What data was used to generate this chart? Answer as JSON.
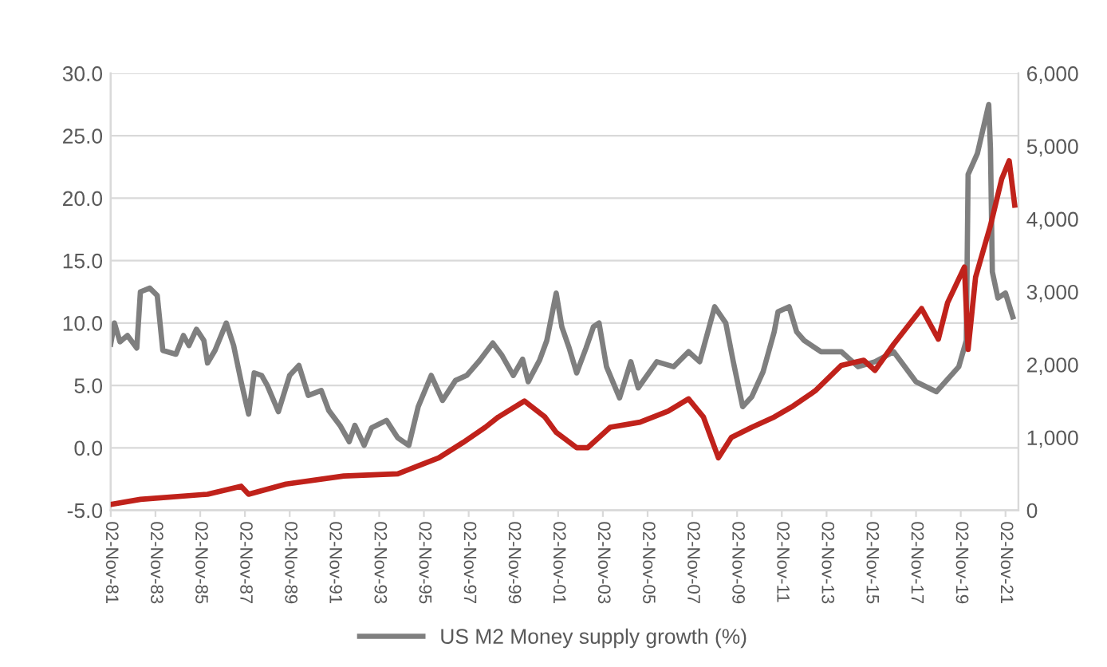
{
  "chart_data": {
    "type": "line",
    "legend": "bottom",
    "grid": "y",
    "line_style": "solid",
    "marker": "none",
    "xlim": [
      "1981-11-01",
      "2022-06-01"
    ],
    "xticks": [
      {
        "value": "1981-11-02",
        "label": "02-Nov-81"
      },
      {
        "value": "1983-11-02",
        "label": "02-Nov-83"
      },
      {
        "value": "1985-11-02",
        "label": "02-Nov-85"
      },
      {
        "value": "1987-11-02",
        "label": "02-Nov-87"
      },
      {
        "value": "1989-11-02",
        "label": "02-Nov-89"
      },
      {
        "value": "1991-11-02",
        "label": "02-Nov-91"
      },
      {
        "value": "1993-11-02",
        "label": "02-Nov-93"
      },
      {
        "value": "1995-11-02",
        "label": "02-Nov-95"
      },
      {
        "value": "1997-11-02",
        "label": "02-Nov-97"
      },
      {
        "value": "1999-11-02",
        "label": "02-Nov-99"
      },
      {
        "value": "2001-11-02",
        "label": "02-Nov-01"
      },
      {
        "value": "2003-11-02",
        "label": "02-Nov-03"
      },
      {
        "value": "2005-11-02",
        "label": "02-Nov-05"
      },
      {
        "value": "2007-11-02",
        "label": "02-Nov-07"
      },
      {
        "value": "2009-11-02",
        "label": "02-Nov-09"
      },
      {
        "value": "2011-11-02",
        "label": "02-Nov-11"
      },
      {
        "value": "2013-11-02",
        "label": "02-Nov-13"
      },
      {
        "value": "2015-11-02",
        "label": "02-Nov-15"
      },
      {
        "value": "2017-11-02",
        "label": "02-Nov-17"
      },
      {
        "value": "2019-11-02",
        "label": "02-Nov-19"
      },
      {
        "value": "2021-11-02",
        "label": "02-Nov-21"
      }
    ],
    "ylim": [
      -5,
      30
    ],
    "yticks": [
      {
        "value": -5,
        "label": "-5.0"
      },
      {
        "value": 0,
        "label": "0.0"
      },
      {
        "value": 5,
        "label": "5.0"
      },
      {
        "value": 10,
        "label": "10.0"
      },
      {
        "value": 15,
        "label": "15.0"
      },
      {
        "value": 20,
        "label": "20.0"
      },
      {
        "value": 25,
        "label": "25.0"
      },
      {
        "value": 30,
        "label": "30.0"
      }
    ],
    "y2lim": [
      0,
      6000
    ],
    "y2ticks": [
      0,
      {
        "value": 1000,
        "label": "1,000"
      },
      {
        "value": 2000,
        "label": "2,000"
      },
      {
        "value": 3000,
        "label": "3,000"
      },
      {
        "value": 4000,
        "label": "4,000"
      },
      {
        "value": 5000,
        "label": "5,000"
      },
      {
        "value": 6000,
        "label": "6,000"
      }
    ],
    "series": [
      {
        "name": "US M2 Money supply growth (%)",
        "color": "#7f7f7f",
        "x": [
          "1981-11",
          "1982-01",
          "1982-04",
          "1982-08",
          "1983-01",
          "1983-03",
          "1983-08",
          "1983-12",
          "1984-03",
          "1984-10",
          "1985-02",
          "1985-05",
          "1985-09",
          "1986-01",
          "1986-03",
          "1986-07",
          "1987-01",
          "1987-05",
          "1987-09",
          "1988-01",
          "1988-04",
          "1988-08",
          "1988-11",
          "1989-05",
          "1989-11",
          "1990-04",
          "1990-09",
          "1991-04",
          "1991-08",
          "1992-02",
          "1992-07",
          "1992-10",
          "1993-03",
          "1993-07",
          "1994-03",
          "1994-09",
          "1995-03",
          "1995-08",
          "1996-03",
          "1996-09",
          "1997-04",
          "1997-10",
          "1998-05",
          "1998-12",
          "1999-05",
          "1999-11",
          "2000-04",
          "2000-07",
          "2001-01",
          "2001-05",
          "2001-10",
          "2002-01",
          "2002-05",
          "2002-09",
          "2003-02",
          "2003-06",
          "2003-09",
          "2004-01",
          "2004-08",
          "2005-02",
          "2005-06",
          "2006-04",
          "2007-01",
          "2007-09",
          "2008-03",
          "2008-11",
          "2009-05",
          "2009-09",
          "2010-02",
          "2010-07",
          "2011-01",
          "2011-07",
          "2011-09",
          "2012-03",
          "2012-07",
          "2012-11",
          "2013-08",
          "2014-07",
          "2015-04",
          "2016-01",
          "2016-11",
          "2017-11",
          "2018-10",
          "2019-10",
          "2020-02",
          "2020-03",
          "2020-08",
          "2021-02",
          "2021-03",
          "2021-04",
          "2021-07",
          "2021-11",
          "2022-03"
        ],
        "values": [
          8.3,
          10.0,
          8.5,
          9.0,
          8.0,
          12.5,
          12.8,
          12.2,
          7.8,
          7.5,
          9.0,
          8.2,
          9.5,
          8.6,
          6.8,
          7.8,
          10.0,
          8.2,
          5.3,
          2.7,
          6.0,
          5.8,
          5.0,
          2.9,
          5.8,
          6.6,
          4.2,
          4.6,
          3.0,
          1.8,
          0.5,
          1.8,
          0.2,
          1.6,
          2.2,
          0.8,
          0.2,
          3.3,
          5.8,
          3.8,
          5.4,
          5.8,
          7.0,
          8.4,
          7.4,
          5.8,
          7.1,
          5.3,
          7.0,
          8.6,
          12.4,
          9.7,
          8.0,
          6.0,
          8.0,
          9.7,
          10.0,
          6.5,
          4.0,
          6.9,
          4.8,
          6.9,
          6.5,
          7.7,
          6.9,
          11.3,
          10.0,
          6.9,
          3.3,
          4.1,
          6.1,
          9.3,
          10.9,
          11.3,
          9.3,
          8.6,
          7.7,
          7.7,
          6.5,
          6.9,
          7.7,
          5.3,
          4.5,
          6.5,
          8.6,
          21.9,
          23.6,
          27.5,
          24.0,
          14.1,
          12.0,
          12.4,
          10.5
        ]
      },
      {
        "color": "#c0221b",
        "axis": "y2",
        "x": [
          "1981-11",
          "1983-03",
          "1986-03",
          "1987-09",
          "1988-01",
          "1989-09",
          "1992-04",
          "1994-09",
          "1995-08",
          "1996-07",
          "1997-08",
          "1998-08",
          "1999-03",
          "2000-05",
          "2001-04",
          "2001-10",
          "2002-09",
          "2003-03",
          "2004-03",
          "2005-07",
          "2006-10",
          "2007-09",
          "2008-05",
          "2009-01",
          "2009-08",
          "2010-07",
          "2011-07",
          "2012-05",
          "2013-05",
          "2014-07",
          "2015-07",
          "2016-01",
          "2016-11",
          "2018-02",
          "2018-11",
          "2019-04",
          "2020-01",
          "2020-03",
          "2020-07",
          "2021-03",
          "2021-09",
          "2022-01",
          "2022-04"
        ],
        "values": [
          80,
          150,
          220,
          330,
          220,
          360,
          470,
          500,
          610,
          720,
          930,
          1140,
          1280,
          1500,
          1280,
          1070,
          860,
          860,
          1140,
          1210,
          1360,
          1530,
          1280,
          720,
          1000,
          1140,
          1280,
          1430,
          1640,
          1990,
          2060,
          1920,
          2280,
          2770,
          2350,
          2850,
          3340,
          2210,
          3200,
          3910,
          4550,
          4800,
          4190
        ]
      }
    ]
  }
}
